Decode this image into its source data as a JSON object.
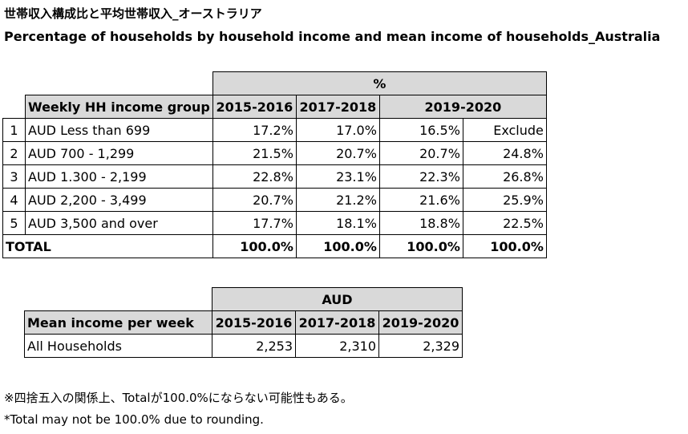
{
  "title_jp": "世帯収入構成比と平均世帯収入_オーストラリア",
  "title_en": "Percentage of households by household income and mean income of households_Australia",
  "table1": {
    "unit_header": "%",
    "col_header": "Weekly HH income group",
    "years": [
      "2015-2016",
      "2017-2018",
      "2019-2020"
    ],
    "rows": [
      {
        "idx": "1",
        "label": "AUD Less than 699",
        "v2015": "17.2%",
        "v2017": "17.0%",
        "v2019a": "16.5%",
        "v2019b": "Exclude"
      },
      {
        "idx": "2",
        "label": "AUD 700 - 1,299",
        "v2015": "21.5%",
        "v2017": "20.7%",
        "v2019a": "20.7%",
        "v2019b": "24.8%"
      },
      {
        "idx": "3",
        "label": "AUD 1.300 - 2,199",
        "v2015": "22.8%",
        "v2017": "23.1%",
        "v2019a": "22.3%",
        "v2019b": "26.8%"
      },
      {
        "idx": "4",
        "label": "AUD 2,200 - 3,499",
        "v2015": "20.7%",
        "v2017": "21.2%",
        "v2019a": "21.6%",
        "v2019b": "25.9%"
      },
      {
        "idx": "5",
        "label": "AUD 3,500 and over",
        "v2015": "17.7%",
        "v2017": "18.1%",
        "v2019a": "18.8%",
        "v2019b": "22.5%"
      }
    ],
    "total": {
      "label": "TOTAL",
      "v2015": "100.0%",
      "v2017": "100.0%",
      "v2019a": "100.0%",
      "v2019b": "100.0%"
    }
  },
  "table2": {
    "unit_header": "AUD",
    "col_header": "Mean income per week",
    "years": [
      "2015-2016",
      "2017-2018",
      "2019-2020"
    ],
    "row": {
      "label": "All Households",
      "v2015": "2,253",
      "v2017": "2,310",
      "v2019": "2,329"
    }
  },
  "note_jp": "※四捨五入の関係上、Totalが100.0%にならない可能性もある。",
  "note_en": "*Total may not be 100.0% due to rounding."
}
